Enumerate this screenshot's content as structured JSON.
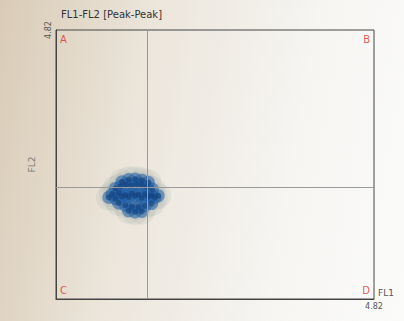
{
  "chart_data": {
    "type": "scatter",
    "title": "FL1-FL2 [Peak-Peak]",
    "x_label": "FL1",
    "y_label": "FL2",
    "xlim": [
      0,
      4.82
    ],
    "ylim": [
      0,
      4.82
    ],
    "xticks": [
      4.82
    ],
    "yticks": [
      4.82
    ],
    "quadrant_x": 1.38,
    "quadrant_y": 2.0,
    "quadrant_labels": [
      "A",
      "B",
      "C",
      "D"
    ],
    "color": "#1f5fa8",
    "grid": false,
    "x": [
      0.8,
      0.85,
      0.9,
      0.95,
      1.0,
      1.05,
      1.1,
      1.15,
      1.2,
      1.25,
      1.3,
      1.35,
      1.4,
      1.45,
      1.5,
      1.55,
      0.9,
      0.98,
      1.06,
      1.14,
      1.22,
      1.3,
      1.38,
      1.46,
      0.95,
      1.05,
      1.15,
      1.25,
      1.35,
      1.45,
      1.0,
      1.1,
      1.2,
      1.3,
      1.4,
      1.1,
      1.2,
      1.3
    ],
    "values": [
      1.82,
      1.88,
      1.8,
      1.9,
      1.84,
      1.86,
      1.83,
      1.89,
      1.85,
      1.87,
      1.81,
      1.88,
      1.84,
      1.86,
      1.82,
      1.85,
      1.98,
      2.02,
      2.05,
      2.03,
      2.06,
      2.04,
      2.01,
      1.97,
      1.72,
      1.68,
      1.66,
      1.65,
      1.67,
      1.71,
      2.1,
      2.14,
      2.15,
      2.13,
      2.09,
      1.58,
      1.56,
      1.57
    ]
  }
}
